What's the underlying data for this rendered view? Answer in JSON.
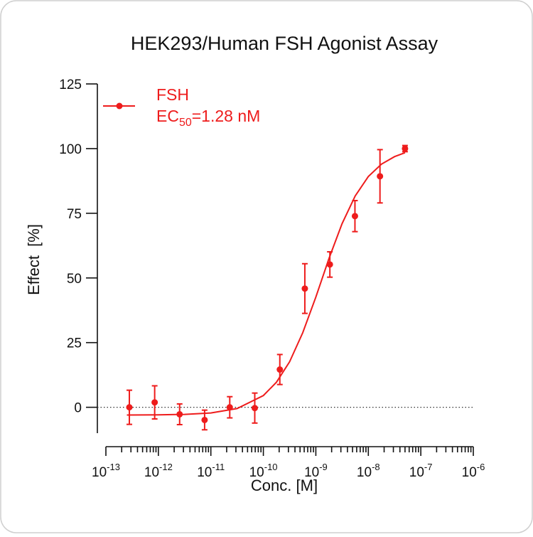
{
  "chart_data": {
    "type": "dose-response",
    "title": "HEK293/Human FSH Agonist Assay",
    "xlabel": "Conc. [M]",
    "ylabel": "Effect  [%]",
    "xscale": "log",
    "xlim": [
      1e-13,
      1e-06
    ],
    "xticks": [
      {
        "value": 1e-13,
        "label": "10",
        "exponent": "-13"
      },
      {
        "value": 1e-12,
        "label": "10",
        "exponent": "-12"
      },
      {
        "value": 1e-11,
        "label": "10",
        "exponent": "-11"
      },
      {
        "value": 1e-10,
        "label": "10",
        "exponent": "-10"
      },
      {
        "value": 1e-09,
        "label": "10",
        "exponent": "-9"
      },
      {
        "value": 1e-08,
        "label": "10",
        "exponent": "-8"
      },
      {
        "value": 1e-07,
        "label": "10",
        "exponent": "-7"
      },
      {
        "value": 1e-06,
        "label": "10",
        "exponent": "-6"
      }
    ],
    "ylim": [
      -10,
      125
    ],
    "yticks": [
      0,
      25,
      50,
      75,
      100,
      125
    ],
    "zero_line": true,
    "legend": "upper-left",
    "series": [
      {
        "name": "FSH",
        "annotation": {
          "text": "EC",
          "sub": "50",
          "rest": "=1.28 nM"
        },
        "color": "#ee1c1c",
        "x": [
          2.8e-13,
          8.5e-13,
          2.54e-12,
          7.6e-12,
          2.29e-11,
          6.86e-11,
          2.06e-10,
          6.17e-10,
          1.85e-09,
          5.56e-09,
          1.667e-08,
          5e-08
        ],
        "values": [
          0,
          1.9,
          -2.7,
          -4.9,
          0,
          -0.3,
          14.6,
          45.9,
          55.2,
          73.9,
          89.3,
          100
        ],
        "errors": [
          6.6,
          6.4,
          4,
          3.8,
          4.1,
          5.8,
          5.8,
          9.6,
          4.9,
          6,
          10.3,
          1.2
        ],
        "fit_x": [
          2.512e-13,
          1e-12,
          3.162e-12,
          1e-11,
          3.162e-11,
          1e-10,
          1.778e-10,
          3.162e-10,
          5.623e-10,
          1e-09,
          1.778e-09,
          3.162e-09,
          5.623e-09,
          1e-08,
          1.778e-08,
          3.162e-08,
          5.012e-08
        ],
        "fit_values": [
          -2.98,
          -2.92,
          -2.74,
          -2.19,
          -0.49,
          4.54,
          9.7,
          17.6,
          28.8,
          42.6,
          57.5,
          71.0,
          81.7,
          89.2,
          94.0,
          96.9,
          98.4
        ]
      }
    ]
  }
}
